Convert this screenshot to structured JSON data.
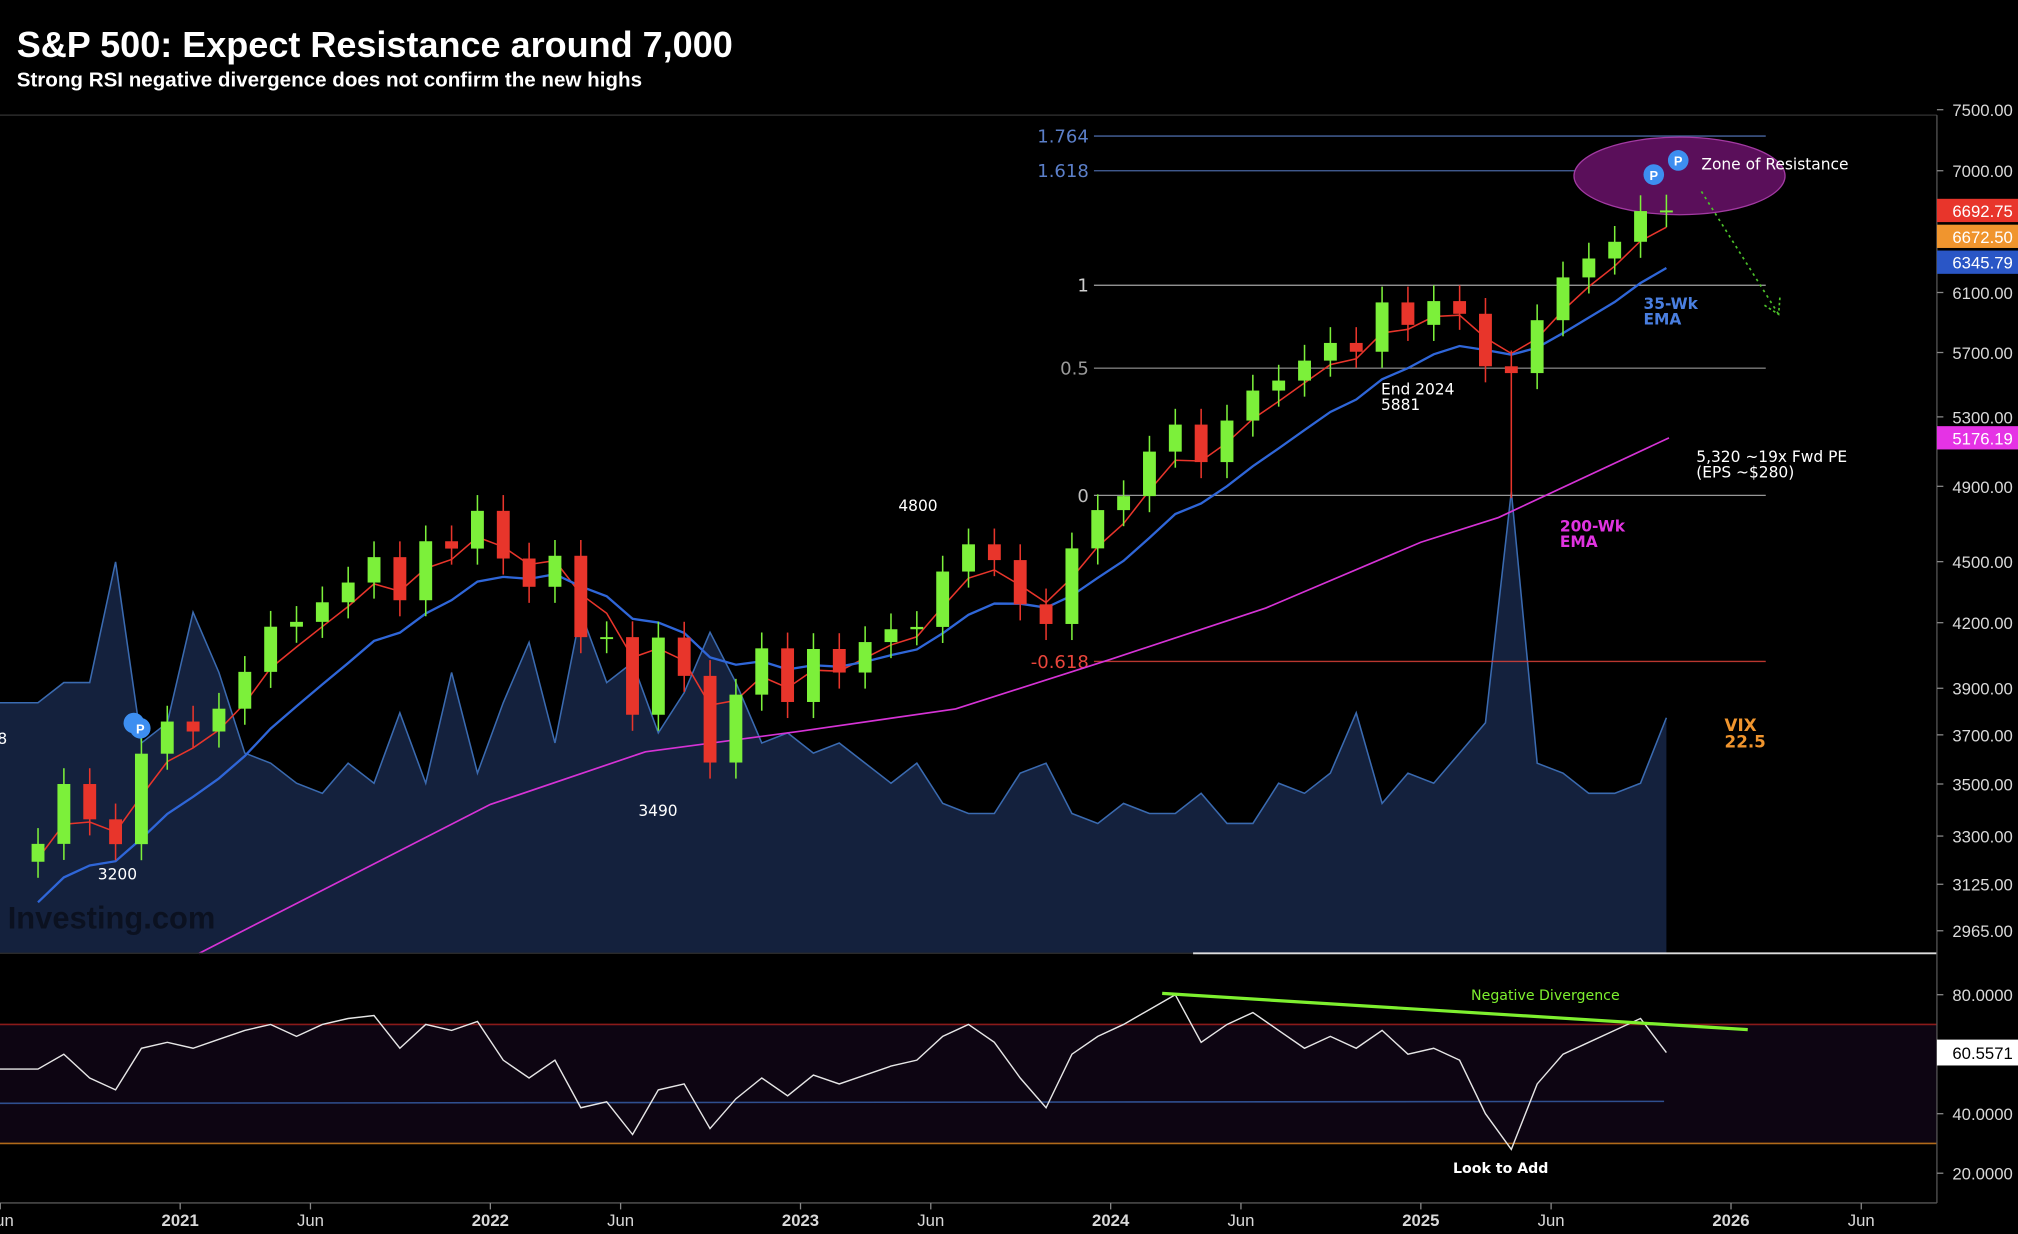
{
  "header": {
    "title": "S&P 500: Expect Resistance around 7,000",
    "subtitle": "Strong RSI negative divergence does not confirm the new highs"
  },
  "colors": {
    "up": "#7cf03a",
    "down": "#e8352b",
    "ema10": "#e8352b",
    "ema35": "#2f66d8",
    "ema200": "#d633d6",
    "vix_fill": "#14213d",
    "vix_line": "#3a6ab0",
    "rsi_line": "#e6e6e6",
    "divergence": "#7ef02f",
    "zone": "#5a0f5a"
  },
  "chart_data": {
    "type": "candlestick",
    "title": "S&P 500: Expect Resistance around 7,000",
    "scale": "log",
    "ylim": [
      2900,
      7600
    ],
    "price_ticks": [
      "7500.00",
      "7000.00",
      "6100.00",
      "5700.00",
      "5300.00",
      "4900.00",
      "4500.00",
      "4200.00",
      "3900.00",
      "3700.00",
      "3500.00",
      "3300.00",
      "3125.00",
      "2965.00"
    ],
    "price_tick_values": [
      7500,
      7000,
      6100,
      5700,
      5300,
      4900,
      4500,
      4200,
      3900,
      3700,
      3500,
      3300,
      3125,
      2965
    ],
    "x_ticks": [
      {
        "label": "Jun",
        "t": 2020.42
      },
      {
        "label": "2021",
        "t": 2021.0
      },
      {
        "label": "Jun",
        "t": 2021.42
      },
      {
        "label": "2022",
        "t": 2022.0
      },
      {
        "label": "Jun",
        "t": 2022.42
      },
      {
        "label": "2023",
        "t": 2023.0
      },
      {
        "label": "Jun",
        "t": 2023.42
      },
      {
        "label": "2024",
        "t": 2024.0
      },
      {
        "label": "Jun",
        "t": 2024.42
      },
      {
        "label": "2025",
        "t": 2025.0
      },
      {
        "label": "Jun",
        "t": 2025.42
      },
      {
        "label": "2026",
        "t": 2026.0
      },
      {
        "label": "Jun",
        "t": 2026.42
      }
    ],
    "start_month": "2020-07",
    "closes": [
      3271,
      3500,
      3363,
      3270,
      3622,
      3756,
      3714,
      3811,
      3973,
      4181,
      4204,
      4298,
      4395,
      4523,
      4308,
      4605,
      4567,
      4766,
      4516,
      4374,
      4530,
      4132,
      4132,
      3785,
      4130,
      3955,
      3586,
      3872,
      4080,
      3840,
      4077,
      3970,
      4109,
      4169,
      4180,
      4450,
      4589,
      4508,
      4288,
      4194,
      4568,
      4770,
      4846,
      5096,
      5254,
      5036,
      5278,
      5460,
      5522,
      5648,
      5762,
      5705,
      6032,
      5881,
      6041,
      5955,
      5612,
      5569,
      5912,
      6205,
      6339,
      6460,
      6688,
      6692.75
    ],
    "ema200_points": [
      [
        2021.06,
        2890
      ],
      [
        2022.0,
        3420
      ],
      [
        2022.5,
        3630
      ],
      [
        2023.0,
        3715
      ],
      [
        2023.5,
        3810
      ],
      [
        2024.0,
        4030
      ],
      [
        2024.5,
        4270
      ],
      [
        2025.0,
        4600
      ],
      [
        2025.25,
        4730
      ],
      [
        2025.8,
        5176.19
      ]
    ],
    "vix": [
      24,
      26,
      26,
      38,
      20,
      22,
      33,
      27,
      19,
      18,
      16,
      15,
      18,
      16,
      23,
      16,
      27,
      17,
      24,
      30,
      20,
      33,
      26,
      28,
      21,
      25,
      31,
      26,
      20,
      21,
      19,
      20,
      18,
      16,
      18,
      14,
      13,
      13,
      17,
      18,
      13,
      12,
      14,
      13,
      13,
      15,
      12,
      12,
      16,
      15,
      17,
      23,
      14,
      17,
      16,
      19,
      22,
      45,
      18,
      17,
      15,
      15,
      16,
      22.5
    ],
    "rsi": [
      55,
      60,
      52,
      48,
      62,
      64,
      62,
      65,
      68,
      70,
      66,
      70,
      72,
      73,
      62,
      70,
      68,
      71,
      58,
      52,
      58,
      42,
      44,
      33,
      48,
      50,
      35,
      45,
      52,
      46,
      53,
      50,
      53,
      56,
      58,
      66,
      70,
      64,
      52,
      42,
      60,
      66,
      70,
      75,
      80,
      64,
      70,
      74,
      68,
      62,
      66,
      62,
      68,
      60,
      62,
      58,
      40,
      28,
      50,
      60,
      64,
      68,
      72,
      60.5571
    ],
    "rsi_ticks": [
      "80.0000",
      "40.0000",
      "20.0000"
    ],
    "rsi_tick_values": [
      80,
      40,
      20
    ],
    "rsi_levels": {
      "overbought": 70,
      "oversold": 30,
      "mid": 43.5
    },
    "fib_levels": [
      {
        "label": "1.764",
        "price": 7280,
        "color": "#5b7fc9"
      },
      {
        "label": "1.618",
        "price": 7000,
        "color": "#5b7fc9"
      },
      {
        "label": "1",
        "price": 6150,
        "color": "#cfcfcf"
      },
      {
        "label": "0.5",
        "price": 5600,
        "color": "#9a9a9a"
      },
      {
        "label": "0",
        "price": 4850,
        "color": "#bdbdbd"
      },
      {
        "label": "-0.618",
        "price": 4020,
        "color": "#e8453b"
      }
    ],
    "price_tags": [
      {
        "label": "6692.75",
        "value": 6692.75,
        "bg": "#e8352b",
        "fg": "#fff"
      },
      {
        "label": "6672.50",
        "value": 6672.5,
        "bg": "#f0952e",
        "fg": "#fff"
      },
      {
        "label": "6345.79",
        "value": 6345.79,
        "bg": "#2a56c6",
        "fg": "#fff"
      },
      {
        "label": "5176.19",
        "value": 5176.19,
        "bg": "#e533e5",
        "fg": "#fff"
      }
    ],
    "rsi_tag": "60.5571"
  },
  "annotations": {
    "zone": "Zone of Resistance",
    "p_badge": "P",
    "ema35_l1": "35-Wk",
    "ema35_l2": "EMA",
    "ema200_l1": "200-Wk",
    "ema200_l2": "EMA",
    "pe_l1": "5,320 ~19x Fwd PE",
    "pe_l2": "(EPS ~$280)",
    "vix_l1": "VIX",
    "vix_l2": "22.5",
    "end2024_l1": "End 2024",
    "end2024_l2": "5881",
    "lvl_4800": "4800",
    "lvl_3490": "3490",
    "lvl_3200": "3200",
    "lvl_8": "8",
    "neg_div": "Negative Divergence",
    "look_to_add": "Look to Add",
    "watermark": "Investing.com"
  }
}
